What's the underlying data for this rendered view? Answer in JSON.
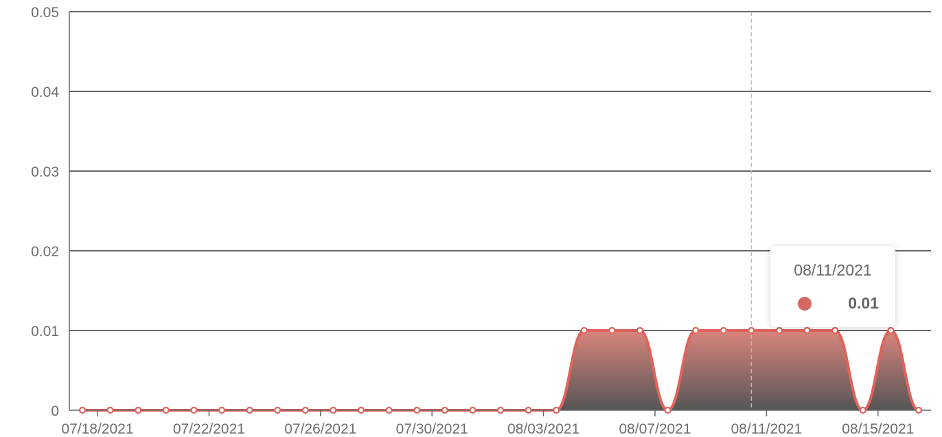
{
  "chart_data": {
    "type": "area",
    "title": "",
    "xlabel": "",
    "ylabel": "",
    "ylim": [
      0,
      0.05
    ],
    "yticks": [
      "0",
      "0.01",
      "0.02",
      "0.03",
      "0.04",
      "0.05"
    ],
    "xticks": [
      "07/18/2021",
      "07/22/2021",
      "07/26/2021",
      "07/30/2021",
      "08/03/2021",
      "08/07/2021",
      "08/11/2021",
      "08/15/2021"
    ],
    "grid": true,
    "legend": "none",
    "x": [
      "07/18/2021",
      "07/19/2021",
      "07/20/2021",
      "07/21/2021",
      "07/22/2021",
      "07/23/2021",
      "07/24/2021",
      "07/25/2021",
      "07/26/2021",
      "07/27/2021",
      "07/28/2021",
      "07/29/2021",
      "07/30/2021",
      "07/31/2021",
      "08/01/2021",
      "08/02/2021",
      "08/03/2021",
      "08/04/2021",
      "08/05/2021",
      "08/06/2021",
      "08/07/2021",
      "08/08/2021",
      "08/09/2021",
      "08/10/2021",
      "08/11/2021",
      "08/12/2021",
      "08/13/2021",
      "08/14/2021",
      "08/15/2021",
      "08/16/2021",
      "08/17/2021"
    ],
    "series": [
      {
        "values": [
          0,
          0,
          0,
          0,
          0,
          0,
          0,
          0,
          0,
          0,
          0,
          0,
          0,
          0,
          0,
          0,
          0,
          0,
          0.01,
          0.01,
          0.01,
          0,
          0.01,
          0.01,
          0.01,
          0.01,
          0.01,
          0.01,
          0,
          0.01,
          0
        ],
        "color": "#e0635b"
      }
    ],
    "hover_index": 24,
    "tooltip": {
      "date": "08/11/2021",
      "value": "0.01",
      "dot_color": "#d36a62"
    }
  }
}
